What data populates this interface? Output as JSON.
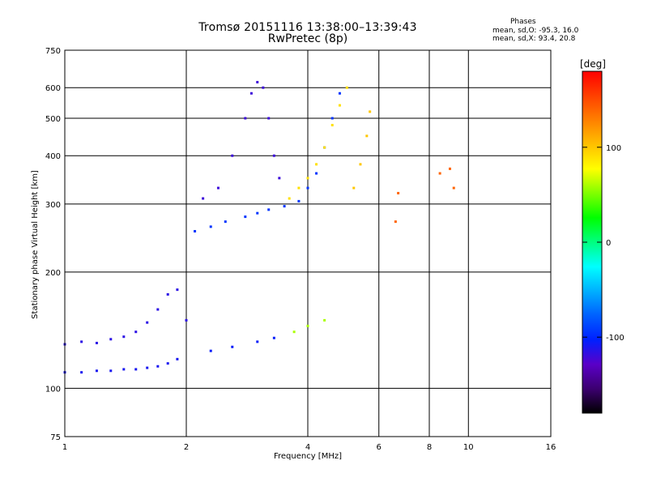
{
  "header": {
    "title_line1": "Tromsø 20151116 13:38:00–13:39:43",
    "title_line2": "RwPretec (8p)"
  },
  "phase_box": {
    "heading": "Phases",
    "o_line": "mean, sd,O: -95.3, 16.0",
    "x_line": "mean, sd,X:  93.4, 20.8"
  },
  "colorbar": {
    "unit_label": "[deg]",
    "ticks": [
      {
        "value": 100,
        "label": "100"
      },
      {
        "value": 0,
        "label": "0"
      },
      {
        "value": -100,
        "label": "-100"
      }
    ],
    "range": [
      -180,
      180
    ],
    "colors": [
      "#000000",
      "#3c0070",
      "#5a00c8",
      "#0020ff",
      "#0060ff",
      "#00b0ff",
      "#00ffff",
      "#00ff80",
      "#00ff00",
      "#80ff00",
      "#ffff00",
      "#ffc000",
      "#ff8000",
      "#ff4000",
      "#ff0000"
    ]
  },
  "chart_data": {
    "type": "scatter",
    "xlabel": "Frequency [MHz]",
    "ylabel": "Stationary phase Virtual Height [km]",
    "xscale": "log",
    "yscale": "log",
    "xlim": [
      1,
      16
    ],
    "ylim": [
      75,
      750
    ],
    "x_ticks": [
      1,
      2,
      4,
      6,
      8,
      10,
      16
    ],
    "x_tick_labels": [
      "1",
      "2",
      "4",
      "6",
      "8",
      "10",
      "16"
    ],
    "y_ticks": [
      75,
      100,
      200,
      300,
      400,
      500,
      600,
      750
    ],
    "y_tick_labels": [
      "75",
      "100",
      "200",
      "300",
      "400",
      "500",
      "600",
      "750"
    ],
    "grid": true,
    "series": [
      {
        "points": [
          [
            1.0,
            110
          ],
          [
            1.1,
            110
          ],
          [
            1.2,
            111
          ],
          [
            1.3,
            111
          ],
          [
            1.4,
            112
          ],
          [
            1.5,
            112
          ],
          [
            1.6,
            113
          ],
          [
            1.7,
            114
          ],
          [
            1.8,
            116
          ],
          [
            1.9,
            119
          ]
        ],
        "phase_deg": -110
      },
      {
        "points": [
          [
            1.0,
            130
          ],
          [
            1.1,
            132
          ],
          [
            1.2,
            131
          ],
          [
            1.3,
            134
          ],
          [
            1.4,
            136
          ],
          [
            1.5,
            140
          ],
          [
            1.6,
            148
          ],
          [
            1.7,
            160
          ],
          [
            1.8,
            175
          ],
          [
            1.9,
            180
          ],
          [
            2.0,
            150
          ]
        ],
        "phase_deg": -115
      },
      {
        "points": [
          [
            2.1,
            255
          ],
          [
            2.3,
            262
          ],
          [
            2.5,
            270
          ],
          [
            2.8,
            278
          ],
          [
            3.0,
            284
          ],
          [
            3.2,
            290
          ],
          [
            3.5,
            296
          ],
          [
            3.8,
            305
          ],
          [
            4.0,
            330
          ],
          [
            4.2,
            360
          ],
          [
            4.4,
            420
          ],
          [
            4.6,
            500
          ],
          [
            4.8,
            580
          ]
        ],
        "phase_deg": -95
      },
      {
        "points": [
          [
            2.2,
            310
          ],
          [
            2.4,
            330
          ],
          [
            2.6,
            400
          ],
          [
            2.8,
            500
          ],
          [
            2.9,
            580
          ],
          [
            3.0,
            620
          ],
          [
            3.1,
            600
          ],
          [
            3.2,
            500
          ],
          [
            3.3,
            400
          ],
          [
            3.4,
            350
          ]
        ],
        "phase_deg": -120
      },
      {
        "points": [
          [
            3.6,
            310
          ],
          [
            3.8,
            330
          ],
          [
            4.0,
            350
          ],
          [
            4.2,
            380
          ],
          [
            4.4,
            420
          ],
          [
            4.6,
            480
          ],
          [
            4.8,
            540
          ],
          [
            5.0,
            600
          ]
        ],
        "phase_deg": 90
      },
      {
        "points": [
          [
            5.2,
            330
          ],
          [
            5.4,
            380
          ],
          [
            5.6,
            450
          ],
          [
            5.7,
            520
          ]
        ],
        "phase_deg": 100
      },
      {
        "points": [
          [
            2.3,
            125
          ],
          [
            2.6,
            128
          ],
          [
            3.0,
            132
          ],
          [
            3.3,
            135
          ]
        ],
        "phase_deg": -105
      },
      {
        "points": [
          [
            3.7,
            140
          ],
          [
            4.0,
            145
          ],
          [
            4.4,
            150
          ]
        ],
        "phase_deg": 60
      },
      {
        "points": [
          [
            6.6,
            270
          ],
          [
            6.7,
            320
          ],
          [
            8.5,
            360
          ],
          [
            9.0,
            370
          ],
          [
            9.2,
            330
          ]
        ],
        "phase_deg": 140
      }
    ]
  }
}
